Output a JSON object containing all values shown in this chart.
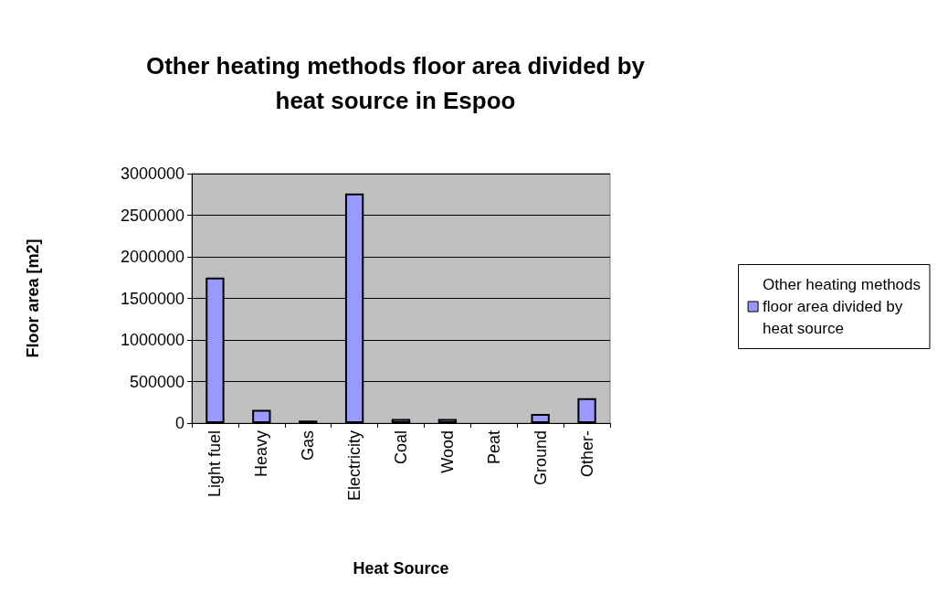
{
  "chart_data": {
    "type": "bar",
    "title": "Other heating methods floor area divided by heat source in Espoo",
    "xlabel": "Heat Source",
    "ylabel": "Floor area [m2]",
    "categories": [
      "Light fuel",
      "Heavy",
      "Gas",
      "Electricity",
      "Coal",
      "Wood",
      "Peat",
      "Ground",
      "Other-"
    ],
    "series": [
      {
        "name": "Other heating methods floor area divided by heat source",
        "color": "#9999ff",
        "values": [
          1750000,
          160000,
          30000,
          2760000,
          50000,
          50000,
          null,
          110000,
          300000
        ]
      }
    ],
    "ylim": [
      0,
      3000000
    ],
    "yticks": [
      0,
      500000,
      1000000,
      1500000,
      2000000,
      2500000,
      3000000
    ],
    "grid": "y",
    "legend": "right"
  }
}
